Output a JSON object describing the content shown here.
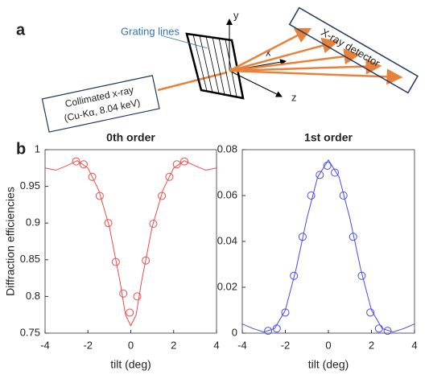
{
  "panel_a": {
    "label": "a",
    "grating_label": "Grating lines",
    "detector_label": "X-ray detector",
    "source_label": [
      "Collimated x-ray",
      "(Cu-Kα, 8.04 keV)"
    ],
    "axes": [
      "y",
      "x",
      "z"
    ]
  },
  "panel_b": {
    "label": "b"
  },
  "chart_data": [
    {
      "type": "scatter",
      "title": "0th order",
      "xlabel": "tilt (deg)",
      "ylabel": "Diffraction efficiencies",
      "xlim": [
        -4,
        4
      ],
      "xticks": [
        -4,
        -2,
        0,
        2,
        4
      ],
      "ylim": [
        0.75,
        1
      ],
      "yticks": [
        0.75,
        0.8,
        0.85,
        0.9,
        0.95,
        1
      ],
      "series": [
        {
          "color": "#f04a4a",
          "style": "circle",
          "x": [
            -2.55,
            -2.2,
            -1.8,
            -1.45,
            -1.05,
            -0.7,
            -0.35,
            -0.05,
            0.3,
            0.7,
            1.05,
            1.45,
            1.8,
            2.15,
            2.5
          ],
          "values": [
            0.984,
            0.98,
            0.963,
            0.937,
            0.9,
            0.847,
            0.804,
            0.778,
            0.8,
            0.849,
            0.899,
            0.937,
            0.963,
            0.98,
            0.984
          ]
        },
        {
          "color": "#f04a4a",
          "style": "line",
          "x": [
            -4,
            -3.5,
            -3,
            -2.5,
            -2,
            -1.5,
            -1,
            -0.5,
            -0.25,
            0,
            0.25,
            0.5,
            1,
            1.5,
            2,
            2.5,
            3,
            3.5,
            4
          ],
          "values": [
            0.975,
            0.972,
            0.978,
            0.985,
            0.975,
            0.945,
            0.895,
            0.82,
            0.775,
            0.76,
            0.775,
            0.82,
            0.895,
            0.945,
            0.975,
            0.985,
            0.978,
            0.972,
            0.975
          ]
        }
      ]
    },
    {
      "type": "scatter",
      "title": "1st order",
      "xlabel": "tilt (deg)",
      "xlim": [
        -4,
        4
      ],
      "xticks": [
        -4,
        -2,
        0,
        2,
        4
      ],
      "ylim": [
        0,
        0.08
      ],
      "yticks": [
        0,
        0.02,
        0.04,
        0.06,
        0.08
      ],
      "series": [
        {
          "color": "#4a4af0",
          "style": "circle",
          "x": [
            -2.8,
            -2.4,
            -2.0,
            -1.6,
            -1.2,
            -0.8,
            -0.4,
            -0.05,
            0.3,
            0.7,
            1.15,
            1.55,
            1.95,
            2.35,
            2.75
          ],
          "values": [
            0.001,
            0.002,
            0.009,
            0.025,
            0.042,
            0.06,
            0.069,
            0.073,
            0.07,
            0.06,
            0.042,
            0.025,
            0.009,
            0.002,
            0.001
          ]
        },
        {
          "color": "#4a4af0",
          "style": "line",
          "x": [
            -4,
            -3.5,
            -3,
            -2.5,
            -2,
            -1.5,
            -1,
            -0.5,
            0,
            0.5,
            1,
            1.5,
            2,
            2.5,
            3,
            3.5,
            4
          ],
          "values": [
            0.004,
            0.002,
            0.0005,
            0.002,
            0.01,
            0.028,
            0.05,
            0.068,
            0.0755,
            0.068,
            0.05,
            0.028,
            0.01,
            0.002,
            0.0005,
            0.002,
            0.004
          ]
        }
      ]
    }
  ]
}
